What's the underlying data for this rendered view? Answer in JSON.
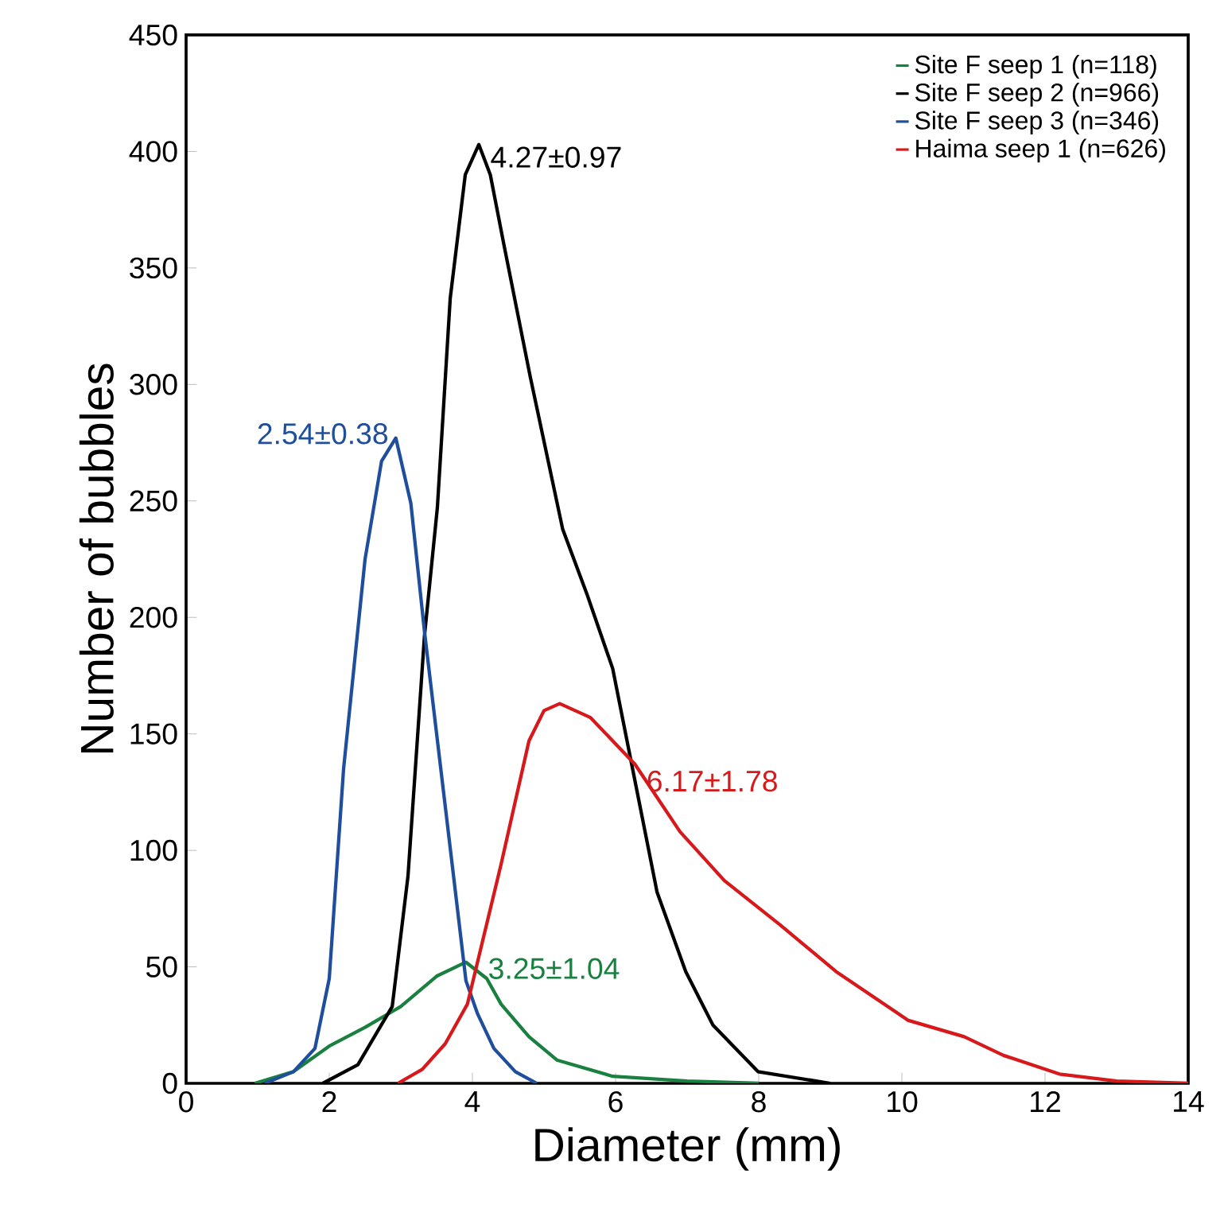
{
  "chart_data": {
    "type": "line",
    "xlabel": "Diameter (mm)",
    "ylabel": "Number of bubbles",
    "xlim": [
      0,
      14
    ],
    "ylim": [
      0,
      450
    ],
    "xticks": [
      0,
      2,
      4,
      6,
      8,
      10,
      12,
      14
    ],
    "yticks": [
      0,
      50,
      100,
      150,
      200,
      250,
      300,
      350,
      400,
      450
    ],
    "grid": false,
    "legend": "top right",
    "marker": "none",
    "line_style": "solid",
    "series": [
      {
        "name": "Site F seep 1 (n=118)",
        "color": "#1a8040",
        "x": [
          0.96,
          1.5,
          2.0,
          2.5,
          3.0,
          3.5,
          3.91,
          4.2,
          4.4,
          4.79,
          5.18,
          5.96,
          7,
          8
        ],
        "values": [
          0,
          5,
          16,
          24,
          33,
          46,
          52,
          45,
          34,
          20,
          10,
          3,
          1,
          0
        ]
      },
      {
        "name": "Site F seep 2 (n=966)",
        "color": "#000000",
        "x": [
          1.91,
          2.4,
          2.88,
          3.1,
          3.33,
          3.51,
          3.69,
          3.9,
          4.09,
          4.25,
          4.44,
          4.81,
          5.26,
          5.6,
          5.96,
          6.27,
          6.58,
          6.98,
          7.36,
          7.99,
          9.0
        ],
        "values": [
          0,
          8,
          33,
          89,
          192,
          247,
          337,
          390,
          403,
          390,
          360,
          303,
          238,
          210,
          178,
          130,
          82,
          48,
          25,
          5,
          0
        ]
      },
      {
        "name": "Site F seep 3 (n=346)",
        "color": "#1f4e9c",
        "x": [
          1.1,
          1.5,
          1.8,
          2.0,
          2.2,
          2.5,
          2.73,
          2.93,
          3.14,
          3.33,
          3.5,
          3.69,
          3.91,
          4.07,
          4.3,
          4.6,
          4.9
        ],
        "values": [
          0,
          5,
          15,
          45,
          135,
          225,
          267,
          277,
          249,
          194,
          150,
          101,
          44,
          30,
          15,
          5,
          0
        ]
      },
      {
        "name": "Haima seep 1 (n=626)",
        "color": "#d7191c",
        "x": [
          2.96,
          3.3,
          3.62,
          3.93,
          4.4,
          4.79,
          5.0,
          5.22,
          5.65,
          6.27,
          6.9,
          7.52,
          8.3,
          9.08,
          10.09,
          10.87,
          11.42,
          12.2,
          13,
          14
        ],
        "values": [
          0,
          6,
          17,
          34,
          94,
          147,
          160,
          163,
          157,
          137,
          108,
          87,
          68,
          48,
          27,
          20,
          12,
          4,
          1,
          0
        ]
      }
    ],
    "annotations": [
      {
        "text": "3.25±1.04",
        "x": 3.91,
        "y": 52
      },
      {
        "text": "4.27±0.97",
        "x": 4.09,
        "y": 403
      },
      {
        "text": "2.54±0.38",
        "x": 2.93,
        "y": 277
      },
      {
        "text": "6.17±1.78",
        "x": 6.27,
        "y": 137
      }
    ]
  }
}
